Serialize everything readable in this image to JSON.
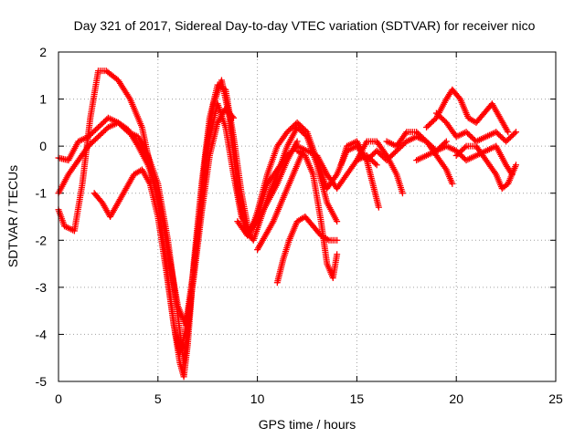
{
  "chart_data": {
    "type": "scatter",
    "title": "Day 321 of 2017, Sidereal Day-to-day VTEC variation (SDTVAR) for receiver nico",
    "xlabel": "GPS time / hours",
    "ylabel": "SDTVAR / TECUs",
    "xlim": [
      0,
      25
    ],
    "ylim": [
      -5,
      2
    ],
    "xticks": [
      0,
      5,
      10,
      15,
      20,
      25
    ],
    "yticks": [
      -5,
      -4,
      -3,
      -2,
      -1,
      0,
      1,
      2
    ],
    "grid": true,
    "marker": "plus",
    "color": "#ff0000",
    "series": [
      {
        "values": [
          [
            0,
            -1.35
          ],
          [
            0.3,
            -1.7
          ],
          [
            0.8,
            -1.8
          ],
          [
            1.2,
            -0.8
          ],
          [
            1.6,
            0.6
          ],
          [
            2.0,
            1.6
          ],
          [
            2.4,
            1.6
          ],
          [
            3.0,
            1.4
          ],
          [
            3.6,
            1.0
          ],
          [
            4.2,
            0.4
          ],
          [
            5.0,
            -1.2
          ],
          [
            5.4,
            -2.4
          ],
          [
            5.8,
            -3.8
          ],
          [
            6.1,
            -4.6
          ],
          [
            6.3,
            -4.9
          ],
          [
            6.5,
            -4.2
          ],
          [
            6.8,
            -2.5
          ],
          [
            7.2,
            -0.8
          ],
          [
            7.6,
            0.6
          ],
          [
            8.0,
            1.3
          ],
          [
            8.4,
            1.2
          ],
          [
            8.8,
            0.2
          ],
          [
            9.2,
            -1.0
          ],
          [
            9.6,
            -1.9
          ],
          [
            10.0,
            -1.4
          ],
          [
            10.5,
            -0.6
          ],
          [
            11.0,
            0.0
          ],
          [
            11.5,
            0.3
          ],
          [
            12.0,
            0.5
          ],
          [
            12.5,
            0.3
          ],
          [
            13.0,
            -0.3
          ],
          [
            13.5,
            -0.9
          ],
          [
            14.0,
            -0.6
          ],
          [
            14.5,
            -0.1
          ],
          [
            15.0,
            0.0
          ],
          [
            15.5,
            -0.3
          ],
          [
            16.0,
            -0.1
          ],
          [
            16.5,
            -0.3
          ],
          [
            17.0,
            -0.1
          ],
          [
            17.5,
            0.1
          ],
          [
            18.0,
            0.2
          ],
          [
            18.5,
            0.1
          ],
          [
            19.0,
            -0.1
          ],
          [
            19.5,
            0.1
          ]
        ]
      },
      {
        "values": [
          [
            0,
            -0.25
          ],
          [
            0.5,
            -0.3
          ],
          [
            1.0,
            0.1
          ],
          [
            1.5,
            0.2
          ],
          [
            2.0,
            0.4
          ],
          [
            2.5,
            0.6
          ],
          [
            3.0,
            0.5
          ],
          [
            3.5,
            0.3
          ],
          [
            4.0,
            0.2
          ],
          [
            4.5,
            -0.2
          ],
          [
            5.0,
            -0.8
          ],
          [
            5.5,
            -2.0
          ],
          [
            6.0,
            -3.6
          ],
          [
            6.3,
            -4.6
          ],
          [
            6.6,
            -3.5
          ],
          [
            7.0,
            -1.8
          ],
          [
            7.4,
            -0.2
          ],
          [
            7.8,
            0.9
          ],
          [
            8.2,
            1.4
          ],
          [
            8.6,
            0.6
          ],
          [
            9.0,
            -0.9
          ],
          [
            9.4,
            -1.8
          ],
          [
            9.8,
            -2.0
          ],
          [
            10.2,
            -1.5
          ],
          [
            10.6,
            -1.0
          ],
          [
            11.0,
            -0.6
          ],
          [
            11.5,
            0.0
          ],
          [
            12.0,
            0.4
          ],
          [
            12.5,
            0.2
          ],
          [
            13.0,
            -0.4
          ],
          [
            13.5,
            -1.2
          ],
          [
            14.0,
            -1.6
          ]
        ]
      },
      {
        "values": [
          [
            0,
            -1.0
          ],
          [
            0.5,
            -0.6
          ],
          [
            1.0,
            -0.3
          ],
          [
            1.5,
            0.0
          ],
          [
            2.0,
            0.2
          ],
          [
            2.5,
            0.4
          ],
          [
            3.0,
            0.5
          ],
          [
            3.5,
            0.35
          ],
          [
            4.0,
            0.0
          ],
          [
            4.5,
            -0.4
          ],
          [
            5.0,
            -1.0
          ],
          [
            5.5,
            -2.2
          ],
          [
            6.0,
            -3.4
          ],
          [
            6.4,
            -3.8
          ],
          [
            6.8,
            -2.6
          ],
          [
            7.2,
            -1.2
          ],
          [
            7.6,
            0.2
          ],
          [
            8.0,
            0.9
          ],
          [
            8.4,
            0.4
          ],
          [
            8.8,
            -0.6
          ],
          [
            9.2,
            -1.5
          ],
          [
            9.6,
            -1.8
          ],
          [
            10.0,
            -1.6
          ],
          [
            10.5,
            -1.2
          ],
          [
            11.0,
            -0.8
          ],
          [
            11.5,
            -0.3
          ],
          [
            12.0,
            0.1
          ]
        ]
      },
      {
        "values": [
          [
            1.8,
            -1.0
          ],
          [
            2.2,
            -1.2
          ],
          [
            2.6,
            -1.5
          ],
          [
            3.0,
            -1.2
          ],
          [
            3.4,
            -0.9
          ],
          [
            3.8,
            -0.6
          ],
          [
            4.2,
            -0.5
          ],
          [
            4.6,
            -0.8
          ],
          [
            5.0,
            -1.5
          ],
          [
            5.4,
            -2.6
          ],
          [
            5.8,
            -3.8
          ],
          [
            6.1,
            -4.4
          ],
          [
            6.4,
            -3.9
          ],
          [
            6.8,
            -2.8
          ],
          [
            7.2,
            -1.4
          ],
          [
            7.6,
            -0.2
          ],
          [
            8.0,
            0.5
          ],
          [
            8.4,
            0.8
          ],
          [
            8.8,
            0.6
          ]
        ]
      },
      {
        "values": [
          [
            9.0,
            -1.6
          ],
          [
            9.5,
            -1.9
          ],
          [
            10.0,
            -1.5
          ],
          [
            10.5,
            -0.8
          ],
          [
            11.0,
            -0.5
          ],
          [
            11.5,
            -0.2
          ],
          [
            12.0,
            0.0
          ],
          [
            12.5,
            -0.1
          ],
          [
            13.0,
            -0.2
          ],
          [
            13.5,
            -0.6
          ],
          [
            14.0,
            -0.9
          ],
          [
            14.5,
            -0.6
          ],
          [
            15.0,
            -0.3
          ],
          [
            15.5,
            -0.2
          ],
          [
            16.0,
            -0.4
          ]
        ]
      },
      {
        "values": [
          [
            10.0,
            -2.2
          ],
          [
            10.4,
            -1.9
          ],
          [
            10.8,
            -1.6
          ],
          [
            11.2,
            -1.2
          ],
          [
            11.6,
            -0.8
          ],
          [
            12.0,
            -0.4
          ],
          [
            12.3,
            -0.1
          ]
        ]
      },
      {
        "values": [
          [
            11.0,
            -2.9
          ],
          [
            11.3,
            -2.4
          ],
          [
            11.6,
            -2.0
          ],
          [
            12.0,
            -1.6
          ],
          [
            12.4,
            -1.5
          ],
          [
            12.8,
            -1.7
          ],
          [
            13.2,
            -1.9
          ],
          [
            13.6,
            -2.0
          ],
          [
            14.0,
            -2.0
          ]
        ]
      },
      {
        "values": [
          [
            12.0,
            -0.1
          ],
          [
            12.4,
            -0.2
          ],
          [
            12.8,
            -0.6
          ],
          [
            13.2,
            -1.6
          ],
          [
            13.5,
            -2.5
          ],
          [
            13.8,
            -2.8
          ],
          [
            14.0,
            -2.3
          ]
        ]
      },
      {
        "values": [
          [
            14.2,
            -0.4
          ],
          [
            14.5,
            0.0
          ],
          [
            15.0,
            0.1
          ],
          [
            15.5,
            -0.3
          ],
          [
            15.8,
            -0.8
          ],
          [
            16.1,
            -1.3
          ]
        ]
      },
      {
        "values": [
          [
            15.0,
            -0.3
          ],
          [
            15.5,
            0.1
          ],
          [
            16.0,
            0.1
          ],
          [
            16.5,
            -0.2
          ],
          [
            17.0,
            -0.6
          ],
          [
            17.3,
            -1.0
          ]
        ]
      },
      {
        "values": [
          [
            16.5,
            0.1
          ],
          [
            17.0,
            0.0
          ],
          [
            17.5,
            0.3
          ],
          [
            18.0,
            0.3
          ],
          [
            18.5,
            0.1
          ],
          [
            19.0,
            -0.2
          ],
          [
            19.5,
            -0.5
          ],
          [
            19.8,
            -0.8
          ]
        ]
      },
      {
        "values": [
          [
            18.5,
            0.4
          ],
          [
            19.0,
            0.6
          ],
          [
            19.5,
            1.0
          ],
          [
            19.8,
            1.2
          ],
          [
            20.2,
            1.0
          ],
          [
            20.6,
            0.6
          ],
          [
            21.0,
            0.5
          ],
          [
            21.4,
            0.7
          ],
          [
            21.8,
            0.9
          ],
          [
            22.2,
            0.6
          ],
          [
            22.6,
            0.3
          ]
        ]
      },
      {
        "values": [
          [
            18.0,
            -0.3
          ],
          [
            18.5,
            -0.2
          ],
          [
            19.0,
            -0.1
          ],
          [
            19.5,
            0.0
          ],
          [
            20.0,
            -0.1
          ],
          [
            20.5,
            -0.3
          ],
          [
            21.0,
            -0.2
          ],
          [
            21.5,
            -0.1
          ],
          [
            22.0,
            0.0
          ],
          [
            22.5,
            -0.4
          ],
          [
            22.8,
            -0.6
          ]
        ]
      },
      {
        "values": [
          [
            19.0,
            0.7
          ],
          [
            19.5,
            0.5
          ],
          [
            20.0,
            0.2
          ],
          [
            20.5,
            0.3
          ],
          [
            21.0,
            0.1
          ],
          [
            21.5,
            0.2
          ],
          [
            22.0,
            0.3
          ],
          [
            22.5,
            0.1
          ],
          [
            23.0,
            0.3
          ]
        ]
      },
      {
        "values": [
          [
            20.0,
            -0.2
          ],
          [
            20.5,
            0.0
          ],
          [
            21.0,
            0.0
          ],
          [
            21.5,
            -0.3
          ],
          [
            22.0,
            -0.6
          ],
          [
            22.3,
            -0.9
          ],
          [
            22.6,
            -0.8
          ],
          [
            23.0,
            -0.4
          ]
        ]
      }
    ]
  }
}
